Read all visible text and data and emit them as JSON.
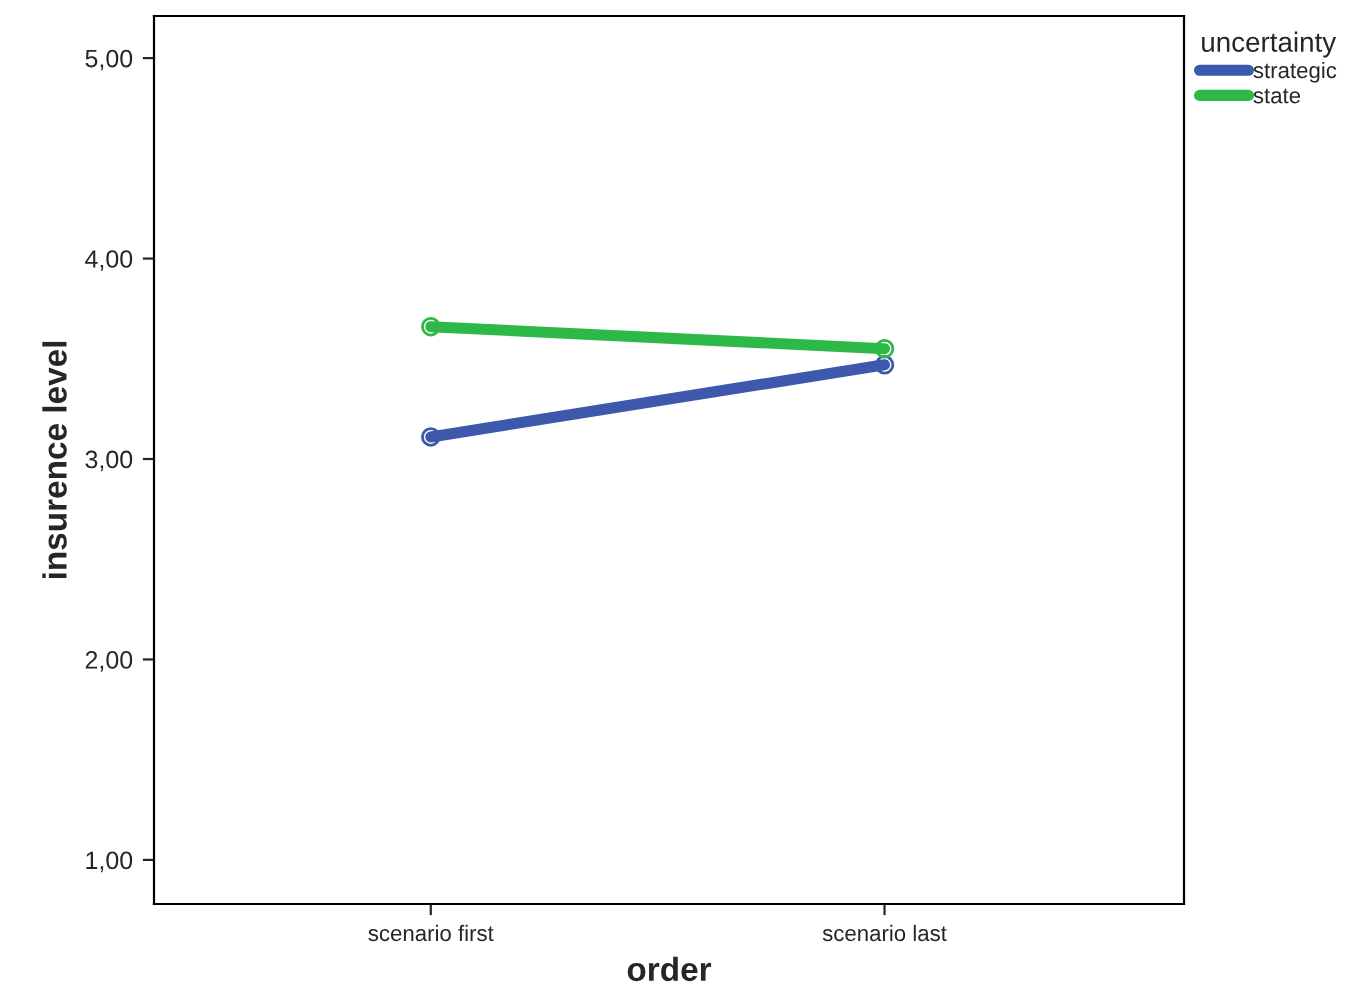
{
  "chart_data": {
    "type": "line",
    "xlabel": "order",
    "ylabel": "insurence level",
    "legend_title": "uncertainty",
    "categories": [
      "scenario first",
      "scenario last"
    ],
    "series": [
      {
        "name": "strategic",
        "color": "#3e58ac",
        "values": [
          3.11,
          3.47
        ]
      },
      {
        "name": "state",
        "color": "#2eb848",
        "values": [
          3.66,
          3.55
        ]
      }
    ],
    "ylim": [
      0.78,
      5.21
    ],
    "yticks": [
      {
        "value": 1,
        "label": "1,00"
      },
      {
        "value": 2,
        "label": "2,00"
      },
      {
        "value": 3,
        "label": "3,00"
      },
      {
        "value": 4,
        "label": "4,00"
      },
      {
        "value": 5,
        "label": "5,00"
      }
    ],
    "grid": false,
    "legend": "top right",
    "marker": "circle",
    "line_style": "solid"
  }
}
